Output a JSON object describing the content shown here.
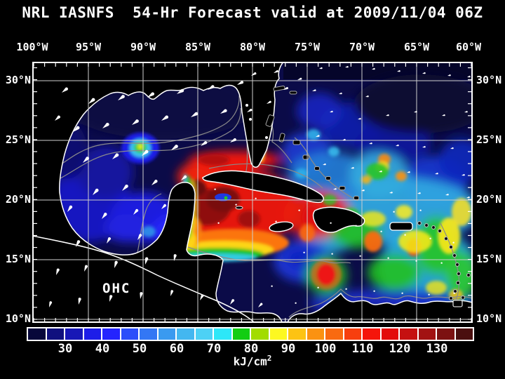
{
  "title": "NRL IASNFS  54-Hr Forecast valid at 2009/11/04 06Z",
  "top_axis": {
    "labels": [
      "100°W",
      "95°W",
      "90°W",
      "85°W",
      "80°W",
      "75°W",
      "70°W",
      "65°W",
      "60°W"
    ]
  },
  "left_axis": {
    "labels": [
      "30°N",
      "25°N",
      "20°N",
      "15°N",
      "10°N"
    ]
  },
  "right_axis": {
    "labels": [
      "30°N",
      "25°N",
      "20°N",
      "15°N",
      "10°N"
    ]
  },
  "map": {
    "region_label": "OHC"
  },
  "colorbar": {
    "tick_labels": [
      "30",
      "40",
      "50",
      "60",
      "70",
      "80",
      "90",
      "100",
      "110",
      "120",
      "130"
    ],
    "unit_base": "kJ/cm",
    "unit_exponent": "2",
    "cell_colors": [
      "#07073a",
      "#10107e",
      "#1717b6",
      "#1d1de8",
      "#2424fe",
      "#2c4efa",
      "#3377f4",
      "#3a9af0",
      "#43b7f0",
      "#4dd1f5",
      "#2de7f8",
      "#12cd12",
      "#a2dc00",
      "#fdf821",
      "#fdc313",
      "#fb9211",
      "#f96a10",
      "#f73f0e",
      "#f5150b",
      "#e30b0b",
      "#c51010",
      "#a21212",
      "#7c1111",
      "#4a0f0f"
    ]
  },
  "chart_data": {
    "type": "heatmap",
    "title": "NRL IASNFS  54-Hr Forecast valid at 2009/11/04 06Z",
    "quantity": "OHC",
    "unit": "kJ/cm2",
    "scale_ticks": [
      30,
      40,
      50,
      60,
      70,
      80,
      90,
      100,
      110,
      120,
      130
    ],
    "x_ticks_deg_west": [
      100,
      95,
      90,
      85,
      80,
      75,
      70,
      65,
      60
    ],
    "y_ticks_deg_north": [
      30,
      25,
      20,
      15,
      10
    ]
  },
  "colors": {
    "background": "#000000",
    "deep_water": "#0b0b48",
    "grid": "#cfcfcf",
    "coastline": "#ffffff",
    "depth_contour": "#8a8a8a",
    "land": "#000000",
    "text": "#ffffff"
  }
}
